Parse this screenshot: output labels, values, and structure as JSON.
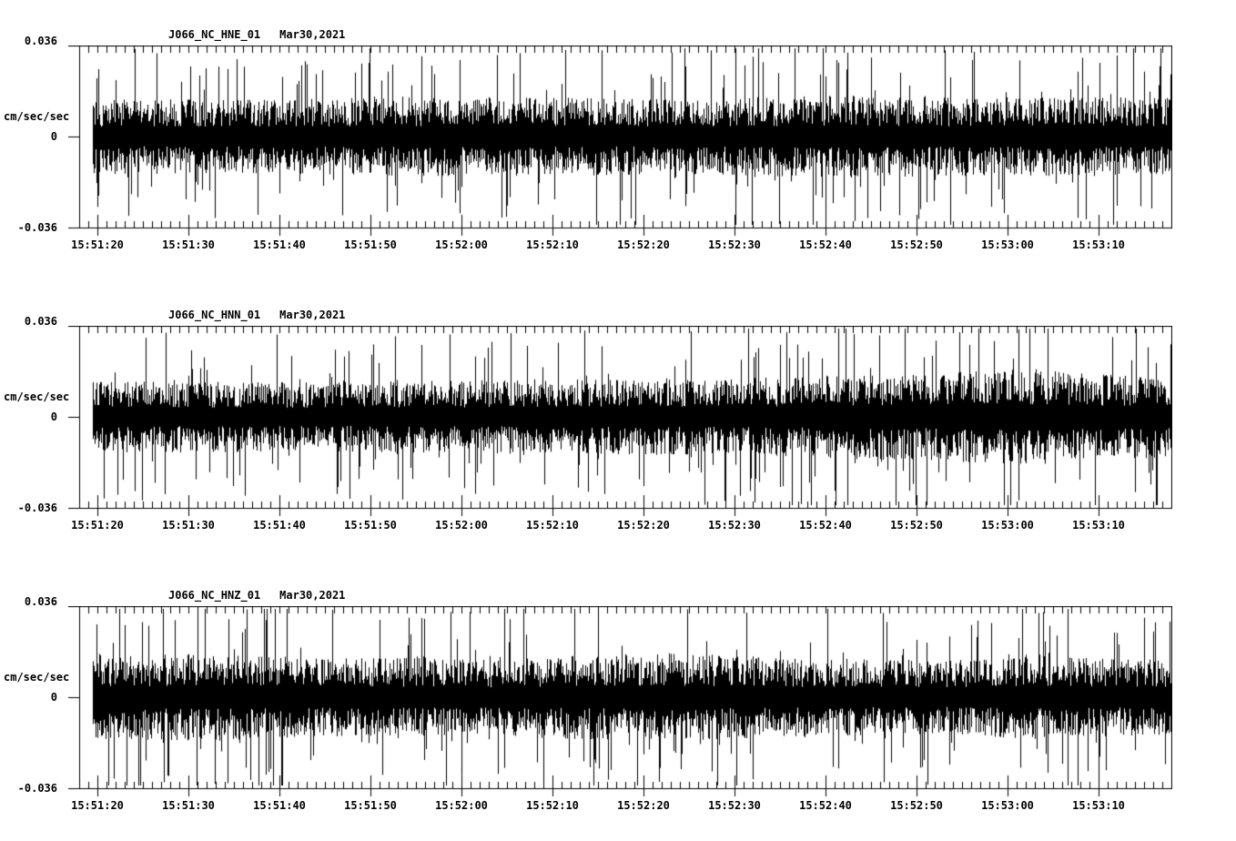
{
  "page": {
    "background": "#ffffff",
    "trace_color": "#000000"
  },
  "chart_data": [
    {
      "type": "line",
      "subtype": "seismogram-trace",
      "station_channel": "J066_NC_HNE_01",
      "date_label": "Mar30,2021",
      "ylabel": "cm/sec/sec",
      "ytick_top": "0.036",
      "ytick_mid": "0",
      "ytick_bottom": "-0.036",
      "ylim": [
        -0.036,
        0.036
      ],
      "x_tick_labels": [
        "15:51:20",
        "15:51:30",
        "15:51:40",
        "15:51:50",
        "15:52:00",
        "15:52:10",
        "15:52:20",
        "15:52:30",
        "15:52:40",
        "15:52:50",
        "15:53:00",
        "15:53:10"
      ],
      "x_axis_start": "15:51:18",
      "x_axis_end": "15:53:18",
      "major_tick_interval_s": 10,
      "minor_tick_interval_s": 1,
      "grid": false,
      "trace": {
        "description": "continuous broadband acceleration noise, dense band about ±0.012 with spikes to ±0.033",
        "seed": 101,
        "base_rms_cm_s2": 0.011,
        "envelope_rel": [
          1.0,
          1.0,
          1.0,
          1.05,
          1.05,
          1.05,
          1.0,
          1.05,
          1.1,
          1.05,
          1.05,
          1.05
        ]
      }
    },
    {
      "type": "line",
      "subtype": "seismogram-trace",
      "station_channel": "J066_NC_HNN_01",
      "date_label": "Mar30,2021",
      "ylabel": "cm/sec/sec",
      "ytick_top": "0.036",
      "ytick_mid": "0",
      "ytick_bottom": "-0.036",
      "ylim": [
        -0.036,
        0.036
      ],
      "x_tick_labels": [
        "15:51:20",
        "15:51:30",
        "15:51:40",
        "15:51:50",
        "15:52:00",
        "15:52:10",
        "15:52:20",
        "15:52:30",
        "15:52:40",
        "15:52:50",
        "15:53:00",
        "15:53:10"
      ],
      "x_axis_start": "15:51:18",
      "x_axis_end": "15:53:18",
      "major_tick_interval_s": 10,
      "minor_tick_interval_s": 1,
      "grid": false,
      "trace": {
        "description": "continuous noise, amplitude grows after 15:52:30 with a bulge peaking near 15:53:05 reaching about 0.033",
        "seed": 202,
        "base_rms_cm_s2": 0.011,
        "envelope_rel": [
          0.95,
          0.95,
          0.92,
          0.95,
          0.98,
          1.0,
          1.0,
          1.05,
          1.12,
          1.18,
          1.28,
          1.1
        ]
      }
    },
    {
      "type": "line",
      "subtype": "seismogram-trace",
      "station_channel": "J066_NC_HNZ_01",
      "date_label": "Mar30,2021",
      "ylabel": "cm/sec/sec",
      "ytick_top": "0.036",
      "ytick_mid": "0",
      "ytick_bottom": "-0.036",
      "ylim": [
        -0.036,
        0.036
      ],
      "x_tick_labels": [
        "15:51:20",
        "15:51:30",
        "15:51:40",
        "15:51:50",
        "15:52:00",
        "15:52:10",
        "15:52:20",
        "15:52:30",
        "15:52:40",
        "15:52:50",
        "15:53:00",
        "15:53:10"
      ],
      "x_axis_start": "15:51:18",
      "x_axis_end": "15:53:18",
      "major_tick_interval_s": 10,
      "minor_tick_interval_s": 1,
      "grid": false,
      "trace": {
        "description": "continuous noise, tall isolated spike near 15:51:54 reaching about 0.035",
        "seed": 303,
        "base_rms_cm_s2": 0.011,
        "envelope_rel": [
          1.12,
          1.18,
          1.05,
          1.05,
          1.0,
          1.12,
          1.18,
          1.08,
          1.02,
          1.0,
          1.12,
          1.02
        ]
      }
    }
  ]
}
